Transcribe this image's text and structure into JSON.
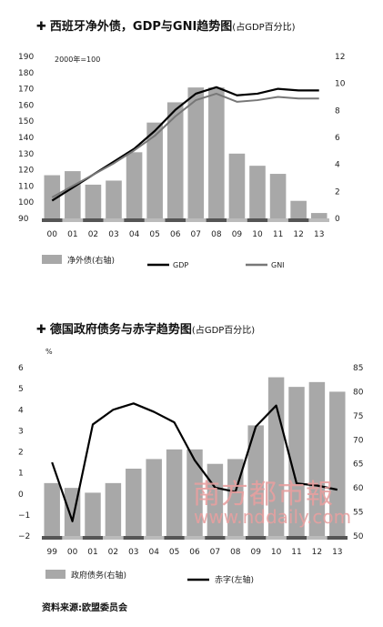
{
  "chart_data": [
    {
      "type": "bar",
      "title": "西班牙净外债，GDP与GNI趋势图",
      "subtitle": "(占GDP百分比)",
      "annotation": "2000年=100",
      "categories": [
        "00",
        "01",
        "02",
        "03",
        "04",
        "05",
        "06",
        "07",
        "08",
        "09",
        "10",
        "11",
        "12",
        "13"
      ],
      "left_axis": {
        "ylim": [
          90,
          190
        ],
        "ticks": [
          "190",
          "180",
          "170",
          "160",
          "150",
          "140",
          "130",
          "120",
          "110",
          "100",
          "90"
        ]
      },
      "right_axis": {
        "ylim": [
          0,
          12
        ],
        "ticks": [
          "12",
          "10",
          "8",
          "6",
          "4",
          "2",
          "0"
        ]
      },
      "series": [
        {
          "name": "净外债(右轴)",
          "type": "bar",
          "axis": "right",
          "color": "#a8a8a8",
          "values": [
            3.2,
            3.5,
            2.5,
            2.8,
            4.9,
            7.1,
            8.6,
            9.7,
            9.7,
            4.8,
            3.9,
            3.3,
            1.3,
            0.4
          ]
        },
        {
          "name": "GDP",
          "type": "line",
          "axis": "left",
          "color": "#000000",
          "values": [
            101,
            109,
            117,
            125,
            133,
            144,
            157,
            167,
            171,
            166,
            167,
            170,
            169,
            169
          ]
        },
        {
          "name": "GNI",
          "type": "line",
          "axis": "left",
          "color": "#777777",
          "values": [
            103,
            110,
            117,
            124,
            132,
            141,
            153,
            163,
            167,
            162,
            163,
            165,
            164,
            164
          ]
        }
      ],
      "legend": [
        "净外债(右轴)",
        "GDP",
        "GNI"
      ]
    },
    {
      "type": "bar",
      "title": "德国政府债务与赤字趋势图",
      "subtitle": "(占GDP百分比)",
      "categories": [
        "99",
        "00",
        "01",
        "02",
        "03",
        "04",
        "05",
        "06",
        "07",
        "08",
        "09",
        "10",
        "11",
        "12",
        "13"
      ],
      "left_axis": {
        "label": "%",
        "ylim": [
          -2,
          6
        ],
        "ticks": [
          "6",
          "5",
          "4",
          "3",
          "2",
          "1",
          "0",
          "−1",
          "−2"
        ]
      },
      "right_axis": {
        "ylim": [
          50,
          85
        ],
        "ticks": [
          "85",
          "80",
          "75",
          "70",
          "65",
          "60",
          "55",
          "50"
        ]
      },
      "series": [
        {
          "name": "政府债务(右轴)",
          "type": "bar",
          "axis": "right",
          "color": "#a8a8a8",
          "values": [
            61,
            60,
            59,
            61,
            64,
            66,
            68,
            68,
            65,
            66,
            73,
            83,
            81,
            82,
            80
          ]
        },
        {
          "name": "赤字(左轴)",
          "type": "line",
          "axis": "left",
          "color": "#000000",
          "values": [
            1.5,
            -1.3,
            3.3,
            4.0,
            4.3,
            3.9,
            3.4,
            1.6,
            0.3,
            0.1,
            3.2,
            4.2,
            0.5,
            0.4,
            0.2
          ]
        }
      ],
      "legend": [
        "政府债务(右轴)",
        "赤字(左轴)"
      ]
    }
  ],
  "watermark": {
    "line1": "南方都市報",
    "line2": "www.nddaily.com"
  },
  "source": "资料来源:欧盟委员会"
}
